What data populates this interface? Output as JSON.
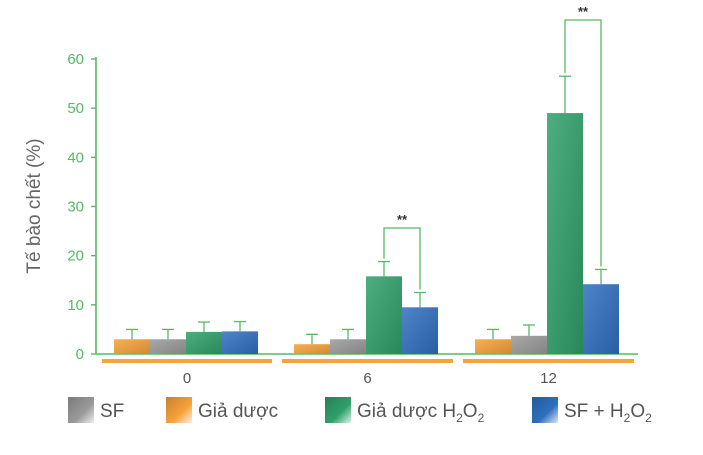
{
  "chart_data": {
    "type": "bar",
    "title": "",
    "xlabel": "",
    "ylabel": "Tế bào chết (%)",
    "ylim": [
      0,
      60
    ],
    "yticks": [
      0,
      10,
      20,
      30,
      40,
      50,
      60
    ],
    "grid": false,
    "legend_position": "bottom",
    "categories": [
      "0",
      "6",
      "12"
    ],
    "series": [
      {
        "name": "Giả dược",
        "color": "#f6a23a",
        "values": [
          3,
          2,
          3
        ],
        "errors": [
          2,
          2,
          2
        ]
      },
      {
        "name": "SF",
        "color": "#9a9a9a",
        "values": [
          3,
          3,
          3.7
        ],
        "errors": [
          2,
          2,
          2.2
        ]
      },
      {
        "name": "Giả dược H2O2",
        "color": "#2fa06a",
        "values": [
          4.5,
          15.8,
          49
        ],
        "errors": [
          2,
          3,
          7.5
        ]
      },
      {
        "name": "SF + H2O2",
        "color": "#2f6fc0",
        "values": [
          4.6,
          9.5,
          14.2
        ],
        "errors": [
          2,
          3,
          3
        ]
      }
    ],
    "annotations": [
      {
        "text": "**",
        "category": "6",
        "between": [
          "Giả dược H2O2",
          "SF + H2O2"
        ]
      },
      {
        "text": "**",
        "category": "12",
        "between": [
          "Giả dược H2O2",
          "SF + H2O2"
        ]
      }
    ],
    "legend": [
      {
        "series": "SF",
        "label": "SF",
        "sub": []
      },
      {
        "series": "Giả dược",
        "label": "Giả dược",
        "sub": []
      },
      {
        "series": "Giả dược H2O2",
        "label": "Giả dược H",
        "sub": [
          "2",
          "O",
          "2"
        ]
      },
      {
        "series": "SF + H2O2",
        "label": "SF + H",
        "sub": [
          "2",
          "O",
          "2"
        ]
      }
    ]
  },
  "colors": {
    "axis": "#58b866",
    "category_bar": "#f2a63a",
    "error_bar": "#58b866"
  }
}
